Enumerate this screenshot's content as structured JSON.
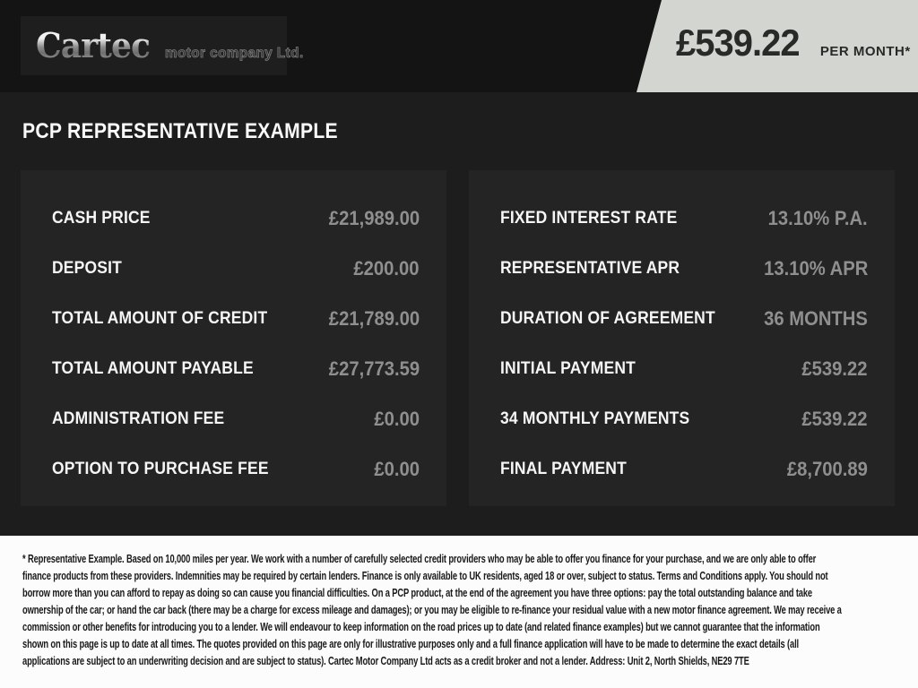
{
  "header": {
    "logo": {
      "brand": "Cartec",
      "suffix": "motor company Ltd."
    },
    "price_flag": {
      "amount": "£539.22",
      "period": "PER MONTH*"
    }
  },
  "page_title": "PCP REPRESENTATIVE EXAMPLE",
  "panels": {
    "left": {
      "rows": [
        {
          "label": "CASH PRICE",
          "value": "£21,989.00"
        },
        {
          "label": "DEPOSIT",
          "value": "£200.00"
        },
        {
          "label": "TOTAL AMOUNT OF CREDIT",
          "value": "£21,789.00"
        },
        {
          "label": "TOTAL AMOUNT PAYABLE",
          "value": "£27,773.59"
        },
        {
          "label": "ADMINISTRATION FEE",
          "value": "£0.00"
        },
        {
          "label": "OPTION TO PURCHASE FEE",
          "value": "£0.00"
        }
      ]
    },
    "right": {
      "rows": [
        {
          "label": "FIXED INTEREST RATE",
          "value": "13.10% P.A."
        },
        {
          "label": "REPRESENTATIVE APR",
          "value": "13.10% APR"
        },
        {
          "label": "DURATION OF AGREEMENT",
          "value": "36 MONTHS"
        },
        {
          "label": "INITIAL PAYMENT",
          "value": "£539.22"
        },
        {
          "label": "34 MONTHLY PAYMENTS",
          "value": "£539.22"
        },
        {
          "label": "FINAL PAYMENT",
          "value": "£8,700.89"
        }
      ]
    }
  },
  "footer": {
    "lines": [
      "* Representative Example. Based on 10,000 miles per year. We work with a number of carefully selected credit providers who may be able to offer you finance for your purchase, and we are only able to offer",
      "finance products from these providers. Indemnities may be required by certain lenders. Finance is only available to UK residents, aged 18 or over, subject to status. Terms and Conditions apply. You should not",
      "borrow more than you can afford to repay as doing so can cause you financial difficulties. On a PCP product, at the end of the agreement you have three options: pay the total outstanding balance and take",
      "ownership of the car; or hand the car back (there may be a charge for excess mileage and damages); or you may be eligible to re-finance your residual value with a new motor finance agreement. We may receive a",
      "commission or other benefits for introducing you to a lender. We will endeavour to keep information on the road prices up to date (and related finance examples) but we cannot guarantee that the information",
      "shown on this page is up to date at all times. The quotes provided on this page are only for illustrative purposes only and a full finance application will have to be made to determine the exact details (all",
      "applications are subject to an underwriting decision and are subject to status). Cartec Motor Company Ltd acts as a credit broker and not a lender. Address: Unit 2, North Shields, NE29 7TE"
    ]
  },
  "colors": {
    "header_bg": "#141414",
    "main_bg": "#1d1d1e",
    "panel_bg": "#242425",
    "flag_bg": "#d3d6d0",
    "label_text": "#f6f6f6",
    "value_text": "#8f8f8f",
    "footer_bg": "#fcfcfc",
    "footer_text": "#191919"
  }
}
